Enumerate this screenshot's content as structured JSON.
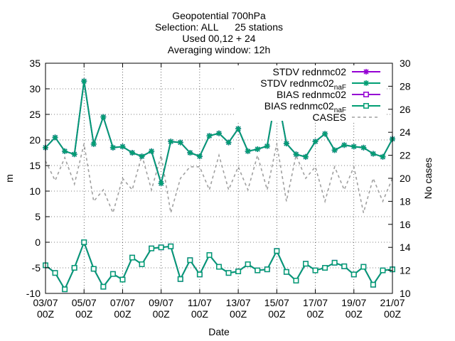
{
  "chart_data": {
    "type": "line",
    "title_lines": [
      "Geopotential 700hPa",
      "Selection: ALL      25 stations",
      "Used 00,12 + 24",
      "Averaging window: 12h"
    ],
    "xlabel": "Date",
    "ylabel": "m",
    "y2label": "No cases",
    "ylim": [
      -10,
      35
    ],
    "y2lim": [
      10,
      30
    ],
    "yticks": [
      "-10",
      "-5",
      "0",
      "5",
      "10",
      "15",
      "20",
      "25",
      "30",
      "35"
    ],
    "y2ticks": [
      "10",
      "12",
      "14",
      "16",
      "18",
      "20",
      "22",
      "24",
      "26",
      "28",
      "30"
    ],
    "xticks": [
      {
        "line1": "03/07",
        "line2": "00Z"
      },
      {
        "line1": "05/07",
        "line2": "00Z"
      },
      {
        "line1": "07/07",
        "line2": "00Z"
      },
      {
        "line1": "09/07",
        "line2": "00Z"
      },
      {
        "line1": "11/07",
        "line2": "00Z"
      },
      {
        "line1": "13/07",
        "line2": "00Z"
      },
      {
        "line1": "15/07",
        "line2": "00Z"
      },
      {
        "line1": "17/07",
        "line2": "00Z"
      },
      {
        "line1": "19/07",
        "line2": "00Z"
      },
      {
        "line1": "21/07",
        "line2": "00Z"
      }
    ],
    "legend_position": "top-right",
    "series": [
      {
        "name": "STDV rednmc02",
        "color": "#9400d3",
        "marker": "star",
        "axis": "y1",
        "values": [
          18.5,
          20.5,
          17.8,
          17.2,
          31.5,
          19.2,
          24.5,
          18.5,
          18.7,
          17.5,
          16.8,
          17.8,
          11.5,
          19.7,
          19.5,
          17.5,
          16.8,
          20.8,
          21.3,
          19.5,
          22.2,
          17.8,
          18.2,
          18.8,
          29.5,
          19.3,
          17.2,
          16.7,
          19.7,
          21.2,
          18.0,
          19.0,
          18.7,
          18.5,
          17.3,
          16.7,
          20.2
        ]
      },
      {
        "name": "STDV rednmc02_naF",
        "color": "#009e73",
        "marker": "star",
        "axis": "y1",
        "values": [
          18.5,
          20.5,
          17.8,
          17.2,
          31.5,
          19.2,
          24.5,
          18.5,
          18.7,
          17.5,
          16.8,
          17.8,
          11.5,
          19.7,
          19.5,
          17.5,
          16.8,
          20.8,
          21.3,
          19.5,
          22.2,
          17.8,
          18.2,
          18.8,
          29.5,
          19.3,
          17.2,
          16.7,
          19.7,
          21.2,
          18.0,
          19.0,
          18.7,
          18.5,
          17.3,
          16.7,
          20.2
        ]
      },
      {
        "name": "BIAS rednmc02",
        "color": "#9400d3",
        "marker": "square",
        "axis": "y1",
        "values": [
          -4.5,
          -6.0,
          -9.2,
          -5.0,
          0.0,
          -5.2,
          -8.7,
          -6.2,
          -7.3,
          -3.0,
          -4.3,
          -1.2,
          -1.0,
          -0.8,
          -7.2,
          -3.5,
          -6.3,
          -2.5,
          -4.8,
          -6.0,
          -5.7,
          -4.3,
          -5.5,
          -5.3,
          -1.7,
          -5.8,
          -7.5,
          -4.2,
          -5.5,
          -5.0,
          -4.0,
          -4.7,
          -6.3,
          -4.8,
          -8.3,
          -5.5,
          -5.3
        ]
      },
      {
        "name": "BIAS rednmc02_naF",
        "color": "#009e73",
        "marker": "square",
        "axis": "y1",
        "values": [
          -4.5,
          -6.0,
          -9.2,
          -5.0,
          0.0,
          -5.2,
          -8.7,
          -6.2,
          -7.3,
          -3.0,
          -4.3,
          -1.2,
          -1.0,
          -0.8,
          -7.2,
          -3.5,
          -6.3,
          -2.5,
          -4.8,
          -6.0,
          -5.7,
          -4.3,
          -5.5,
          -5.3,
          -1.7,
          -5.8,
          -7.5,
          -4.2,
          -5.5,
          -5.0,
          -4.0,
          -4.7,
          -6.3,
          -4.8,
          -8.3,
          -5.5,
          -5.3
        ]
      },
      {
        "name": "CASES",
        "color": "#a0a0a0",
        "marker": "none",
        "dashed": true,
        "axis": "y2",
        "values": [
          21.5,
          19.8,
          21.8,
          19.5,
          23.0,
          18.0,
          19.0,
          17.0,
          20.0,
          19.0,
          22.0,
          19.0,
          22.0,
          17.0,
          20.0,
          21.0,
          21.0,
          19.0,
          22.0,
          19.0,
          21.0,
          19.0,
          22.0,
          19.0,
          23.0,
          18.0,
          22.0,
          20.0,
          21.0,
          18.0,
          21.0,
          19.0,
          21.0,
          17.0,
          20.0,
          18.0,
          20.0
        ]
      }
    ]
  }
}
